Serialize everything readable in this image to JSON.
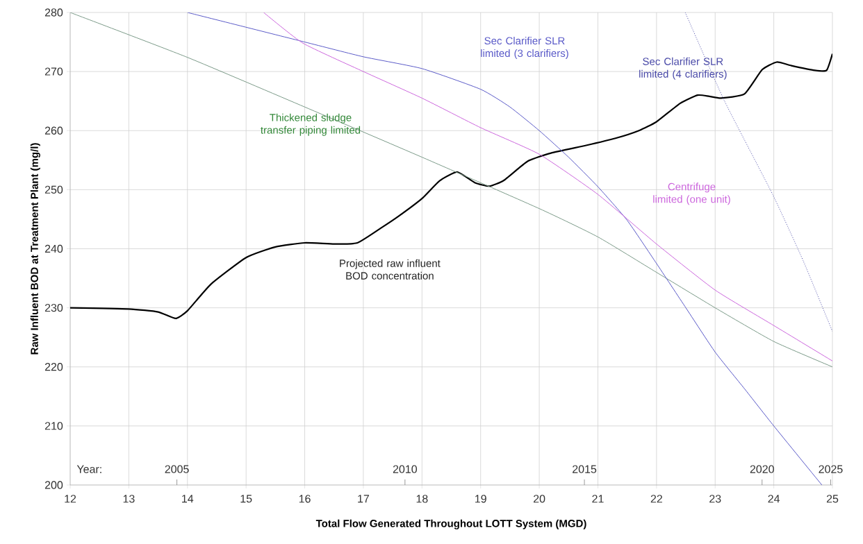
{
  "chart_data": {
    "type": "line",
    "xlabel": "Total Flow Generated Throughout LOTT System (MGD)",
    "ylabel": "Raw Influent BOD at Treatment Plant (mg/l)",
    "xlim": [
      12,
      25
    ],
    "ylim": [
      200,
      280
    ],
    "xticks": [
      12,
      13,
      14,
      15,
      16,
      17,
      18,
      19,
      20,
      21,
      22,
      23,
      24,
      25
    ],
    "yticks": [
      200,
      210,
      220,
      230,
      240,
      250,
      260,
      270,
      280
    ],
    "grid": true,
    "marker": "none",
    "annotations": [
      "Year:",
      "2005",
      "2010",
      "2015",
      "2020",
      "2025"
    ],
    "series": [
      {
        "name": "Projected raw influent BOD concentration",
        "color": "#000000",
        "line_style": "solid",
        "x": [
          12,
          13,
          13.5,
          13.8,
          14,
          14.4,
          15,
          15.5,
          16,
          16.5,
          16.9,
          17.3,
          17.6,
          18,
          18.3,
          18.6,
          18.9,
          19.15,
          19.4,
          19.8,
          20.2,
          20.8,
          21.3,
          21.7,
          22,
          22.4,
          22.7,
          22.9,
          23.1,
          23.5,
          23.8,
          24.05,
          24.3,
          24.7,
          24.9,
          25
        ],
        "values": [
          230,
          229.8,
          229.3,
          228.2,
          229.5,
          234,
          238.5,
          240.3,
          241,
          240.8,
          241,
          243.5,
          245.5,
          248.5,
          251.5,
          253,
          251.2,
          250.6,
          251.6,
          254.8,
          256.2,
          257.5,
          258.7,
          260,
          261.5,
          264.6,
          266,
          265.8,
          265.5,
          266.2,
          270.3,
          271.6,
          271,
          270.2,
          270.2,
          273
        ]
      },
      {
        "name": "Thickened sludge transfer piping limited",
        "color": "#7a9a88",
        "line_style": "solid",
        "x": [
          12,
          14,
          16,
          18,
          20,
          21,
          22,
          23,
          24,
          25
        ],
        "values": [
          280,
          272.4,
          264,
          255.5,
          246.8,
          242,
          236,
          230,
          224.3,
          220
        ]
      },
      {
        "name": "Sec Clarifier SLR limited (3 clarifiers)",
        "color": "#5a5ac8",
        "line_style": "solid",
        "x": [
          14,
          16,
          17,
          18,
          19,
          19.5,
          20,
          20.5,
          21,
          21.5,
          22,
          22.5,
          23,
          23.5,
          24,
          24.82
        ],
        "values": [
          280,
          275,
          272.5,
          270.5,
          267,
          264,
          260,
          255.5,
          250.5,
          244.8,
          237.5,
          230,
          222.5,
          216.3,
          210,
          200
        ]
      },
      {
        "name": "Sec Clarifier SLR limited (4 clarifiers)",
        "color": "#4a4aa8",
        "line_style": "dotted",
        "x": [
          22.49,
          23.15,
          23.98,
          24.5,
          25
        ],
        "values": [
          280,
          265.2,
          249.2,
          238,
          226
        ]
      },
      {
        "name": "Centrifuge limited (one unit)",
        "color": "#cc66dd",
        "line_style": "solid",
        "x": [
          15.3,
          15.97,
          17,
          18,
          19,
          20,
          21,
          22,
          23,
          24,
          25
        ],
        "values": [
          280,
          274.8,
          270,
          265.5,
          260.5,
          256,
          249.2,
          240.8,
          233,
          227,
          221
        ]
      }
    ]
  }
}
